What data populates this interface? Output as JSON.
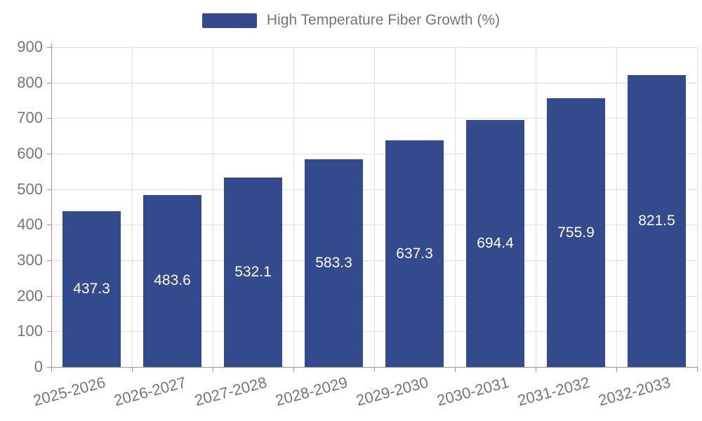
{
  "legend": {
    "label": "High Temperature Fiber Growth (%)"
  },
  "chart_data": {
    "type": "bar",
    "title": "",
    "legend_entries": [
      "High Temperature Fiber Growth (%)"
    ],
    "legend_position": "top",
    "categories": [
      "2025-2026",
      "2026-2027",
      "2027-2028",
      "2028-2029",
      "2029-2030",
      "2030-2031",
      "2031-2032",
      "2032-2033"
    ],
    "values": [
      437.3,
      483.6,
      532.1,
      583.3,
      637.3,
      694.4,
      755.9,
      821.5
    ],
    "xlabel": "",
    "ylabel": "",
    "ylim": [
      0,
      900
    ],
    "ytick_step": 100,
    "yticks": [
      0,
      100,
      200,
      300,
      400,
      500,
      600,
      700,
      800,
      900
    ],
    "grid": true,
    "bar_color": "#334A8D",
    "value_label_color": "#FFFFFF",
    "grid_color": "#E0E0E0",
    "axis_color": "#999999",
    "tick_label_color": "#757575"
  }
}
